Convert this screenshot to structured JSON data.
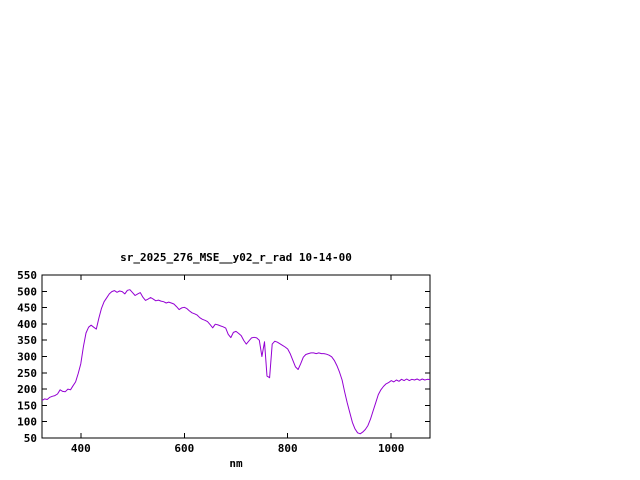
{
  "chart_data": {
    "type": "line",
    "title": "sr_2025_276_MSE__y02_r_rad 10-14-00",
    "xlabel": "nm",
    "ylabel": "",
    "xlim": [
      325,
      1075
    ],
    "ylim": [
      50,
      550
    ],
    "x_ticks": [
      400,
      600,
      800,
      1000
    ],
    "y_ticks": [
      50,
      100,
      150,
      200,
      250,
      300,
      350,
      400,
      450,
      500,
      550
    ],
    "grid": false,
    "legend": "none",
    "line_color": "#9400d3",
    "border_color": "#000000",
    "x": [
      325,
      330,
      335,
      340,
      345,
      350,
      355,
      360,
      365,
      370,
      375,
      380,
      385,
      390,
      395,
      400,
      405,
      410,
      415,
      420,
      425,
      430,
      435,
      440,
      445,
      450,
      455,
      460,
      465,
      470,
      475,
      480,
      485,
      490,
      495,
      500,
      505,
      510,
      515,
      520,
      525,
      530,
      535,
      540,
      545,
      550,
      555,
      560,
      565,
      570,
      575,
      580,
      585,
      590,
      595,
      600,
      605,
      610,
      615,
      620,
      625,
      630,
      635,
      640,
      645,
      650,
      655,
      660,
      665,
      670,
      675,
      680,
      685,
      690,
      695,
      700,
      705,
      710,
      715,
      720,
      725,
      730,
      735,
      740,
      745,
      750,
      755,
      760,
      765,
      770,
      775,
      780,
      785,
      790,
      795,
      800,
      805,
      810,
      815,
      820,
      825,
      830,
      835,
      840,
      845,
      850,
      855,
      860,
      865,
      870,
      875,
      880,
      885,
      890,
      895,
      900,
      905,
      910,
      915,
      920,
      925,
      930,
      935,
      940,
      945,
      950,
      955,
      960,
      965,
      970,
      975,
      980,
      985,
      990,
      995,
      1000,
      1005,
      1010,
      1015,
      1020,
      1025,
      1030,
      1035,
      1040,
      1045,
      1050,
      1055,
      1060,
      1065,
      1070,
      1075
    ],
    "y": [
      165,
      170,
      168,
      175,
      178,
      180,
      185,
      198,
      193,
      192,
      200,
      198,
      210,
      222,
      248,
      278,
      330,
      372,
      390,
      396,
      390,
      384,
      418,
      448,
      468,
      480,
      492,
      499,
      502,
      497,
      501,
      499,
      492,
      503,
      505,
      496,
      487,
      492,
      496,
      482,
      472,
      476,
      481,
      476,
      471,
      473,
      470,
      468,
      464,
      467,
      464,
      461,
      453,
      444,
      449,
      451,
      447,
      440,
      434,
      431,
      427,
      419,
      414,
      411,
      407,
      398,
      388,
      399,
      397,
      394,
      391,
      387,
      368,
      358,
      374,
      377,
      371,
      364,
      349,
      338,
      348,
      357,
      359,
      357,
      350,
      300,
      345,
      240,
      235,
      338,
      347,
      344,
      339,
      334,
      329,
      323,
      308,
      288,
      268,
      260,
      278,
      298,
      306,
      309,
      311,
      311,
      309,
      311,
      309,
      309,
      307,
      304,
      299,
      288,
      272,
      252,
      228,
      192,
      158,
      128,
      98,
      78,
      66,
      63,
      68,
      76,
      88,
      108,
      133,
      158,
      183,
      198,
      208,
      216,
      220,
      226,
      222,
      228,
      224,
      230,
      226,
      231,
      226,
      230,
      228,
      231,
      227,
      231,
      228,
      230,
      229
    ]
  }
}
